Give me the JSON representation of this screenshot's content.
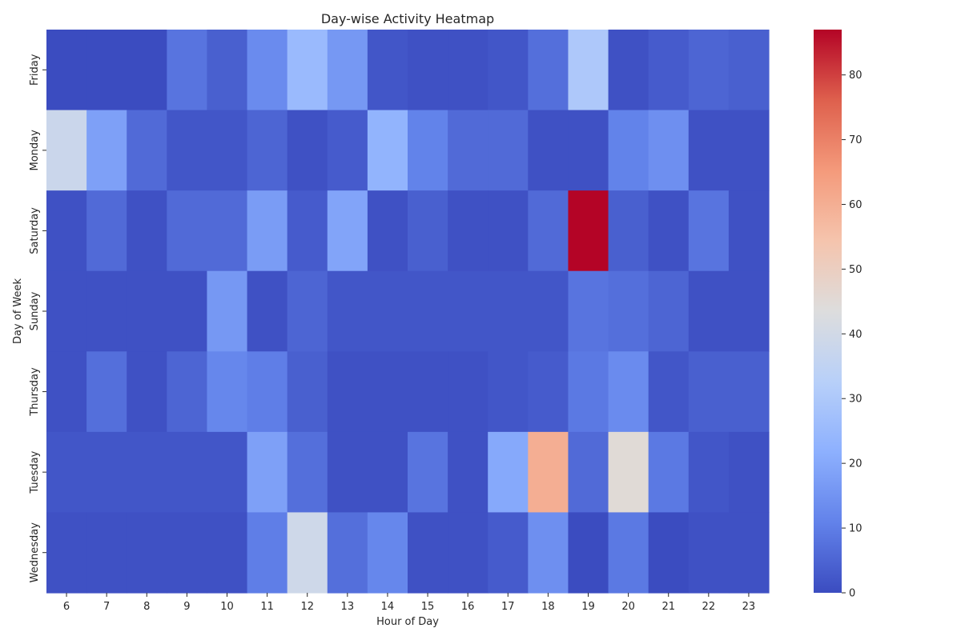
{
  "chart_data": {
    "type": "heatmap",
    "title": "Day-wise Activity Heatmap",
    "xlabel": "Hour of Day",
    "ylabel": "Day of Week",
    "x_categories": [
      "6",
      "7",
      "8",
      "9",
      "10",
      "11",
      "12",
      "13",
      "14",
      "15",
      "16",
      "17",
      "18",
      "19",
      "20",
      "21",
      "22",
      "23"
    ],
    "y_categories": [
      "Friday",
      "Monday",
      "Saturday",
      "Sunday",
      "Thursday",
      "Tuesday",
      "Wednesday"
    ],
    "values": [
      [
        0,
        0,
        0,
        8,
        4,
        13,
        25,
        16,
        2,
        1,
        1,
        2,
        7,
        30,
        1,
        3,
        5,
        4
      ],
      [
        38,
        18,
        6,
        2,
        2,
        5,
        1,
        3,
        23,
        11,
        6,
        6,
        1,
        1,
        11,
        14,
        1,
        1
      ],
      [
        1,
        6,
        1,
        6,
        6,
        17,
        3,
        19,
        1,
        4,
        1,
        1,
        6,
        87,
        4,
        1,
        8,
        1
      ],
      [
        1,
        1,
        1,
        1,
        16,
        1,
        5,
        2,
        2,
        2,
        2,
        2,
        2,
        8,
        7,
        5,
        1,
        1
      ],
      [
        1,
        7,
        1,
        5,
        12,
        10,
        4,
        1,
        1,
        1,
        1,
        2,
        3,
        9,
        13,
        2,
        4,
        4
      ],
      [
        2,
        2,
        2,
        2,
        2,
        18,
        7,
        1,
        1,
        8,
        1,
        20,
        60,
        6,
        45,
        9,
        2,
        1
      ],
      [
        1,
        1,
        1,
        1,
        1,
        10,
        39,
        7,
        12,
        1,
        1,
        3,
        14,
        0,
        9,
        0,
        1,
        1
      ]
    ],
    "colorbar": {
      "min": 0,
      "max": 87,
      "ticks": [
        0,
        10,
        20,
        30,
        40,
        50,
        60,
        70,
        80
      ],
      "colormap": "coolwarm"
    },
    "grid": false
  }
}
